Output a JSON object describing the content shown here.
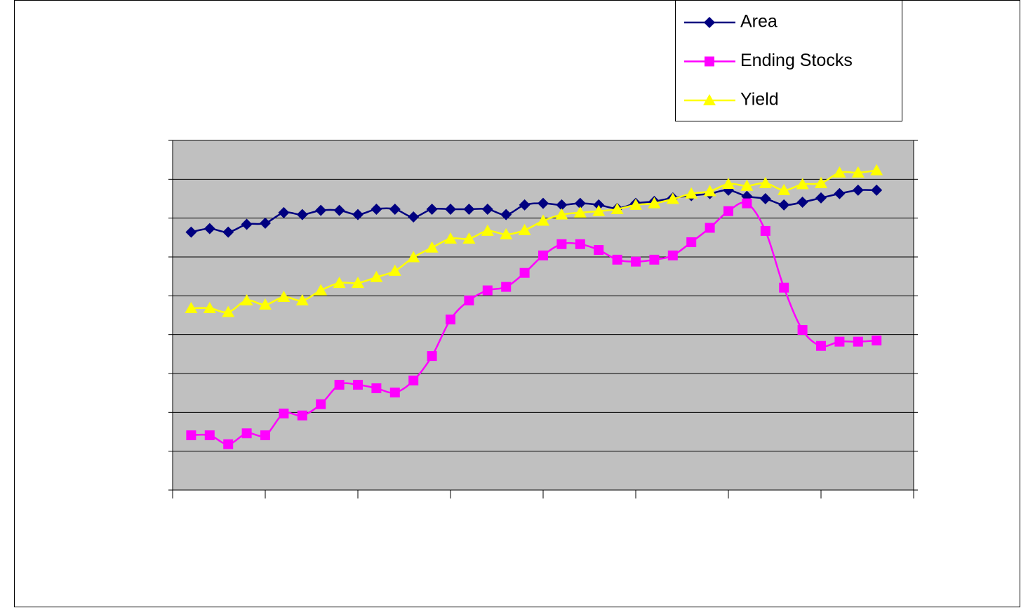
{
  "chart_data": {
    "type": "line",
    "x": [
      1,
      2,
      3,
      4,
      5,
      6,
      7,
      8,
      9,
      10,
      11,
      12,
      13,
      14,
      15,
      16,
      17,
      18,
      19,
      20,
      21,
      22,
      23,
      24,
      25,
      26,
      27,
      28,
      29,
      30,
      31,
      32,
      33,
      34,
      35,
      36,
      37,
      38
    ],
    "xlim": [
      0,
      40
    ],
    "xticks": [
      0,
      5,
      10,
      15,
      20,
      25,
      30,
      35,
      40
    ],
    "ylim": [
      0,
      9
    ],
    "yticks": [
      0,
      1,
      2,
      3,
      4,
      5,
      6,
      7,
      8,
      9
    ],
    "grid": true,
    "legend": "top-right",
    "series": [
      {
        "name": "Area",
        "color": "#000080",
        "marker": "diamond",
        "values": [
          6.64,
          6.73,
          6.64,
          6.84,
          6.87,
          7.14,
          7.09,
          7.2,
          7.2,
          7.09,
          7.23,
          7.23,
          7.03,
          7.23,
          7.23,
          7.23,
          7.23,
          7.09,
          7.34,
          7.38,
          7.34,
          7.38,
          7.34,
          7.25,
          7.38,
          7.43,
          7.52,
          7.58,
          7.63,
          7.72,
          7.56,
          7.5,
          7.34,
          7.41,
          7.52,
          7.63,
          7.72,
          7.72
        ]
      },
      {
        "name": "Ending Stocks",
        "color": "#ff00ff",
        "marker": "square",
        "values": [
          1.41,
          1.41,
          1.18,
          1.46,
          1.41,
          1.97,
          1.92,
          2.21,
          2.71,
          2.71,
          2.62,
          2.51,
          2.82,
          3.45,
          4.39,
          4.88,
          5.14,
          5.23,
          5.59,
          6.04,
          6.33,
          6.33,
          6.18,
          5.93,
          5.88,
          5.93,
          6.04,
          6.38,
          6.75,
          7.18,
          7.38,
          6.67,
          5.21,
          4.12,
          3.71,
          3.82,
          3.82,
          3.85
        ]
      },
      {
        "name": "Yield",
        "color": "#ffff00",
        "marker": "triangle",
        "values": [
          4.68,
          4.68,
          4.58,
          4.88,
          4.77,
          4.97,
          4.88,
          5.14,
          5.33,
          5.33,
          5.48,
          5.64,
          5.99,
          6.24,
          6.47,
          6.47,
          6.67,
          6.58,
          6.69,
          6.93,
          7.09,
          7.14,
          7.18,
          7.23,
          7.34,
          7.38,
          7.49,
          7.63,
          7.69,
          7.88,
          7.83,
          7.9,
          7.72,
          7.87,
          7.9,
          8.17,
          8.17,
          8.23
        ]
      }
    ]
  }
}
